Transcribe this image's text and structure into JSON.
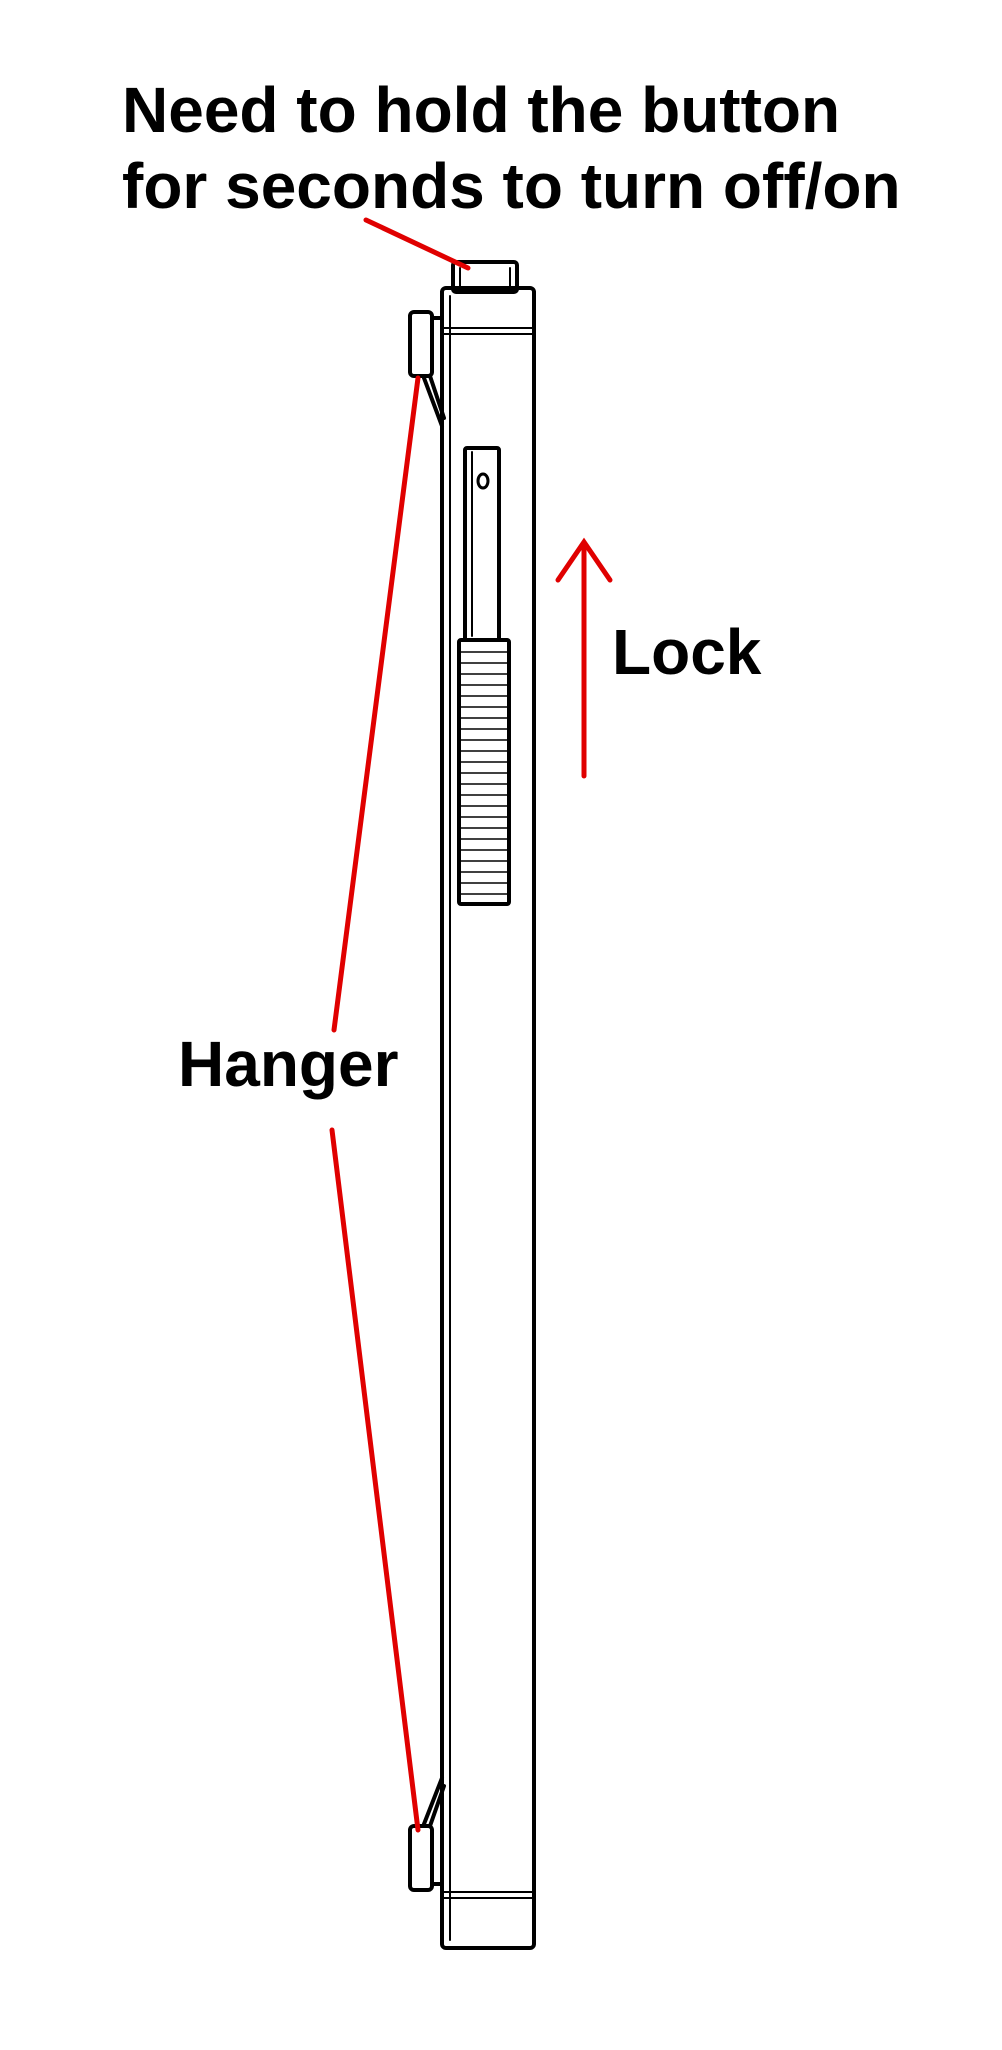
{
  "annotations": {
    "button_note_line1": "Need to hold the button",
    "button_note_line2": "for seconds to turn off/on",
    "lock": "Lock",
    "hanger": "Hanger"
  },
  "colors": {
    "outline": "#000000",
    "annotation": "#e00000",
    "background": "#ffffff"
  }
}
